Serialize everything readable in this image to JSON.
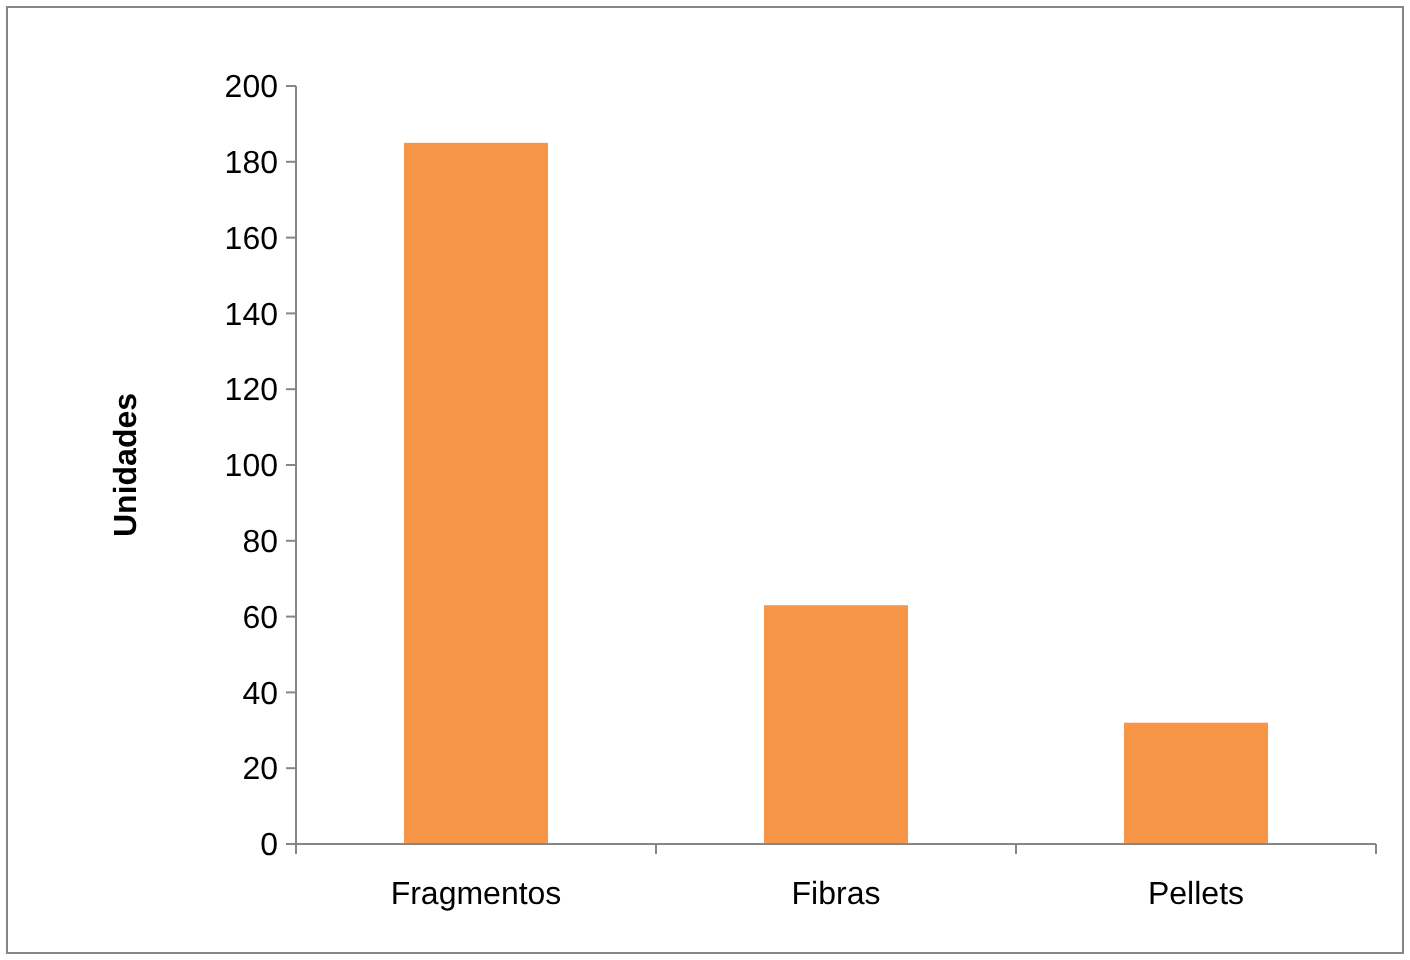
{
  "chart_data": {
    "type": "bar",
    "ylabel": "Unidades",
    "categories": [
      "Fragmentos",
      "Fibras",
      "Pellets"
    ],
    "values": [
      185,
      63,
      32
    ],
    "color": "#f79646",
    "ylim": [
      0,
      200
    ],
    "yticks": [
      0,
      20,
      40,
      60,
      80,
      100,
      120,
      140,
      160,
      180,
      200
    ],
    "grid": false
  }
}
